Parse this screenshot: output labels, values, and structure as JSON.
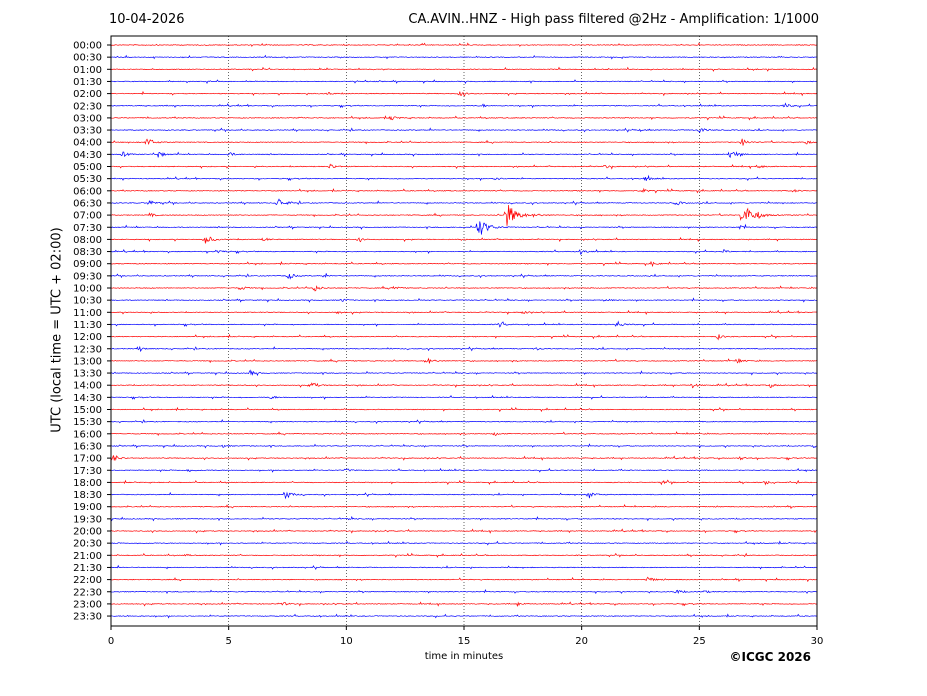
{
  "header": {
    "date": "10-04-2026",
    "title": "CA.AVIN..HNZ - High pass filtered @2Hz - Amplification: 1/1000"
  },
  "footer": {
    "copyright": "©ICGC 2026"
  },
  "chart_data": {
    "type": "seismogram",
    "title": "CA.AVIN..HNZ - High pass filtered @2Hz - Amplification: 1/1000",
    "xlabel": "time in minutes",
    "ylabel": "UTC (local time = UTC + 02:00)",
    "xlim": [
      0,
      30
    ],
    "xticks": [
      0,
      5,
      10,
      15,
      20,
      25,
      30
    ],
    "grid": "vertical dotted at 5, 10, 15, 20, 25",
    "colors": {
      "even_rows": "#ff0000",
      "odd_rows": "#0000ff"
    },
    "rows": [
      {
        "label": "00:00",
        "events": []
      },
      {
        "label": "00:30",
        "events": []
      },
      {
        "label": "01:00",
        "events": []
      },
      {
        "label": "01:30",
        "events": []
      },
      {
        "label": "02:00",
        "events": [
          {
            "t": 9.2,
            "a": 0.25
          },
          {
            "t": 14.8,
            "a": 0.45
          }
        ]
      },
      {
        "label": "02:30",
        "events": [
          {
            "t": 15.8,
            "a": 0.2
          },
          {
            "t": 28.6,
            "a": 0.45
          }
        ]
      },
      {
        "label": "03:00",
        "events": [
          {
            "t": 8.0,
            "a": 0.2
          },
          {
            "t": 11.9,
            "a": 0.4
          }
        ]
      },
      {
        "label": "03:30",
        "events": [
          {
            "t": 22.5,
            "a": 0.15
          },
          {
            "t": 25.0,
            "a": 0.5
          }
        ]
      },
      {
        "label": "04:00",
        "events": [
          {
            "t": 1.5,
            "a": 0.8
          },
          {
            "t": 26.8,
            "a": 0.6
          },
          {
            "t": 29.5,
            "a": 0.4
          }
        ]
      },
      {
        "label": "04:30",
        "events": [
          {
            "t": 0.5,
            "a": 0.4
          },
          {
            "t": 2.0,
            "a": 0.5
          },
          {
            "t": 5.0,
            "a": 0.4
          },
          {
            "t": 26.3,
            "a": 0.9
          }
        ]
      },
      {
        "label": "05:00",
        "events": [
          {
            "t": 9.3,
            "a": 0.5
          },
          {
            "t": 21.0,
            "a": 0.3
          },
          {
            "t": 27.5,
            "a": 0.3
          }
        ]
      },
      {
        "label": "05:30",
        "events": [
          {
            "t": 16.3,
            "a": 0.3
          },
          {
            "t": 22.7,
            "a": 0.4
          }
        ]
      },
      {
        "label": "06:00",
        "events": [
          {
            "t": 22.6,
            "a": 0.3
          },
          {
            "t": 29.0,
            "a": 0.25
          }
        ]
      },
      {
        "label": "06:30",
        "events": [
          {
            "t": 1.6,
            "a": 0.5
          },
          {
            "t": 7.1,
            "a": 0.8
          },
          {
            "t": 24.0,
            "a": 0.4
          }
        ]
      },
      {
        "label": "07:00",
        "events": [
          {
            "t": 1.6,
            "a": 0.4
          },
          {
            "t": 16.8,
            "a": 1.9
          },
          {
            "t": 18.0,
            "a": 0.3
          },
          {
            "t": 26.8,
            "a": 1.9
          },
          {
            "t": 27.5,
            "a": 0.3
          }
        ]
      },
      {
        "label": "07:30",
        "events": [
          {
            "t": 15.6,
            "a": 1.6
          },
          {
            "t": 26.7,
            "a": 0.4
          }
        ]
      },
      {
        "label": "08:00",
        "events": [
          {
            "t": 4.0,
            "a": 0.8
          },
          {
            "t": 6.5,
            "a": 0.3
          },
          {
            "t": 10.5,
            "a": 0.3
          }
        ]
      },
      {
        "label": "08:30",
        "events": [
          {
            "t": 4.5,
            "a": 0.4
          },
          {
            "t": 19.9,
            "a": 0.6
          },
          {
            "t": 26.0,
            "a": 0.3
          }
        ]
      },
      {
        "label": "09:00",
        "events": [
          {
            "t": 23.0,
            "a": 0.3
          }
        ]
      },
      {
        "label": "09:30",
        "events": [
          {
            "t": 7.5,
            "a": 0.6
          },
          {
            "t": 9.0,
            "a": 0.3
          }
        ]
      },
      {
        "label": "10:00",
        "events": [
          {
            "t": 5.5,
            "a": 0.4
          },
          {
            "t": 8.6,
            "a": 0.6
          },
          {
            "t": 12.0,
            "a": 0.4
          }
        ]
      },
      {
        "label": "10:30",
        "events": [
          {
            "t": 9.8,
            "a": 0.3
          },
          {
            "t": 21.0,
            "a": 0.25
          }
        ]
      },
      {
        "label": "11:00",
        "events": [
          {
            "t": 9.6,
            "a": 0.3
          },
          {
            "t": 17.5,
            "a": 0.3
          }
        ]
      },
      {
        "label": "11:30",
        "events": [
          {
            "t": 16.5,
            "a": 0.4
          },
          {
            "t": 21.5,
            "a": 0.6
          }
        ]
      },
      {
        "label": "12:00",
        "events": [
          {
            "t": 25.8,
            "a": 0.4
          }
        ]
      },
      {
        "label": "12:30",
        "events": [
          {
            "t": 1.2,
            "a": 0.3
          },
          {
            "t": 18.0,
            "a": 0.3
          }
        ]
      },
      {
        "label": "13:00",
        "events": [
          {
            "t": 13.4,
            "a": 0.6
          },
          {
            "t": 26.6,
            "a": 0.45
          }
        ]
      },
      {
        "label": "13:30",
        "events": [
          {
            "t": 5.9,
            "a": 0.4
          }
        ]
      },
      {
        "label": "14:00",
        "events": [
          {
            "t": 8.5,
            "a": 0.6
          },
          {
            "t": 24.7,
            "a": 0.4
          },
          {
            "t": 28.0,
            "a": 0.3
          }
        ]
      },
      {
        "label": "14:30",
        "events": [
          {
            "t": 6.8,
            "a": 0.3
          }
        ]
      },
      {
        "label": "15:00",
        "events": []
      },
      {
        "label": "15:30",
        "events": []
      },
      {
        "label": "16:00",
        "events": [
          {
            "t": 16.3,
            "a": 0.3
          }
        ]
      },
      {
        "label": "16:30",
        "events": [
          {
            "t": 4.7,
            "a": 0.25
          },
          {
            "t": 29.9,
            "a": 0.4
          }
        ]
      },
      {
        "label": "17:00",
        "events": [
          {
            "t": 0.1,
            "a": 0.6
          },
          {
            "t": 26.7,
            "a": 0.3
          }
        ]
      },
      {
        "label": "17:30",
        "events": [
          {
            "t": 3.3,
            "a": 0.3
          },
          {
            "t": 10.0,
            "a": 0.25
          }
        ]
      },
      {
        "label": "18:00",
        "events": [
          {
            "t": 23.4,
            "a": 0.35
          },
          {
            "t": 27.8,
            "a": 0.3
          }
        ]
      },
      {
        "label": "18:30",
        "events": [
          {
            "t": 7.4,
            "a": 0.7
          },
          {
            "t": 20.3,
            "a": 0.6
          }
        ]
      },
      {
        "label": "19:00",
        "events": []
      },
      {
        "label": "19:30",
        "events": [
          {
            "t": 10.1,
            "a": 0.25
          }
        ]
      },
      {
        "label": "20:00",
        "events": []
      },
      {
        "label": "20:30",
        "events": []
      },
      {
        "label": "21:00",
        "events": [
          {
            "t": 3.2,
            "a": 0.15
          }
        ]
      },
      {
        "label": "21:30",
        "events": []
      },
      {
        "label": "22:00",
        "events": [
          {
            "t": 22.8,
            "a": 0.5
          }
        ]
      },
      {
        "label": "22:30",
        "events": [
          {
            "t": 24.0,
            "a": 0.4
          },
          {
            "t": 25.2,
            "a": 0.25
          }
        ]
      },
      {
        "label": "23:00",
        "events": [
          {
            "t": 7.3,
            "a": 0.3
          },
          {
            "t": 17.3,
            "a": 0.25
          }
        ]
      },
      {
        "label": "23:30",
        "events": [
          {
            "t": 0.6,
            "a": 0.15
          }
        ]
      }
    ]
  }
}
